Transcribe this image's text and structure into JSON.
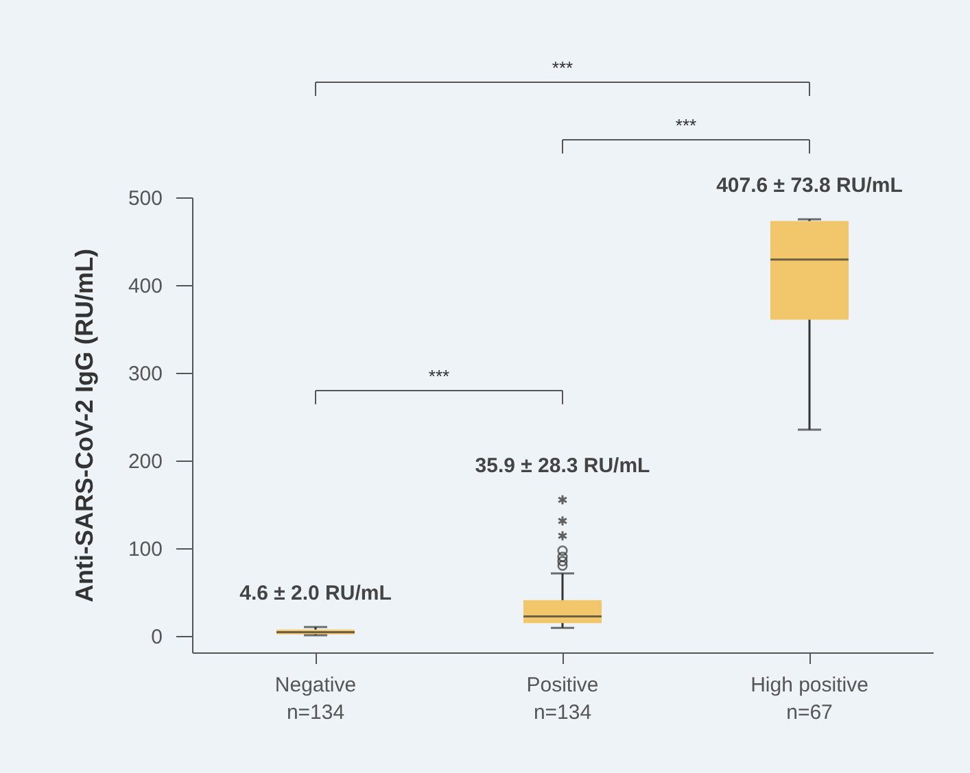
{
  "chart_data": {
    "type": "box",
    "ylabel": "Anti-SARS-CoV-2 IgG (RU/mL)",
    "categories": [
      "Negative\nn=134",
      "Positive\nn=134",
      "High positive\nn=67"
    ],
    "ylim": [
      -19,
      500
    ],
    "yticks": [
      0,
      100,
      200,
      300,
      400,
      500
    ],
    "series": [
      {
        "color": "#f2c76b",
        "boxes": [
          {
            "low": 0.5,
            "q1": 1.5,
            "median": 4,
            "q3": 7,
            "high": 10
          },
          {
            "low": 9,
            "q1": 14.5,
            "median": 22,
            "q3": 40.6,
            "high": 71,
            "outliers": [
              80,
              85,
              90,
              97
            ]
          },
          {
            "low": 235,
            "q1": 360.5,
            "median": 429,
            "q3": 473,
            "high": 475
          }
        ]
      },
      {
        "type": "scatter",
        "marker": "cross",
        "color": "#222222",
        "x": [
          "Positive\nn=134",
          "Positive\nn=134",
          "Positive\nn=134"
        ],
        "values": [
          114,
          131,
          155
        ]
      }
    ],
    "annotations": [
      {
        "text": "4.6 ± 2.0 RU/mL",
        "x": "Negative\nn=134",
        "y": 10
      },
      {
        "text": "35.9 ± 28.3 RU/mL",
        "x": "Positive\nn=134",
        "y": 155
      },
      {
        "text": "407.6 ± 73.8 RU/mL",
        "x": "High positive\nn=67",
        "y": 475
      },
      "***",
      "***",
      "***"
    ]
  }
}
